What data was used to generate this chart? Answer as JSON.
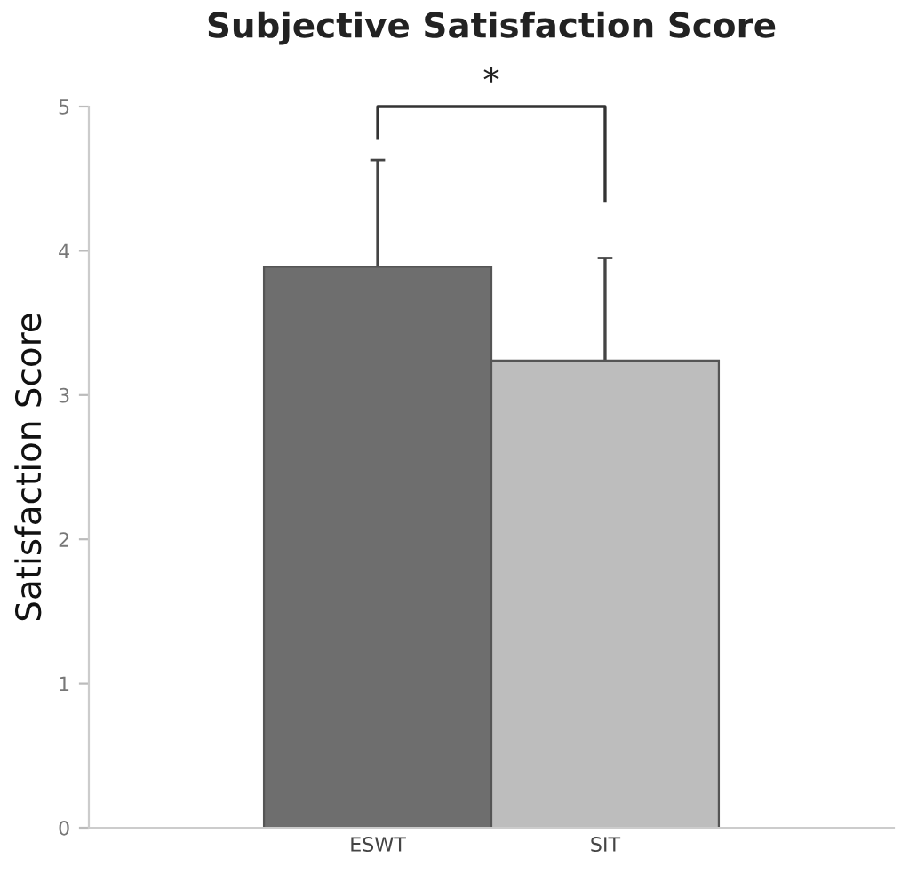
{
  "chart_data": {
    "type": "bar",
    "title": "Subjective Satisfaction Score",
    "ylabel": "Satisfaction Score",
    "categories": [
      "ESWT",
      "SIT"
    ],
    "values": [
      3.89,
      3.24
    ],
    "colors": [
      "#6e6e6e",
      "#bdbdbd"
    ],
    "errors": [
      0.74,
      0.71
    ],
    "ylim": [
      0,
      5
    ],
    "yticks": [
      0,
      1,
      2,
      3,
      4,
      5
    ],
    "grid": false,
    "legend": false,
    "annotations": [
      "*"
    ]
  }
}
